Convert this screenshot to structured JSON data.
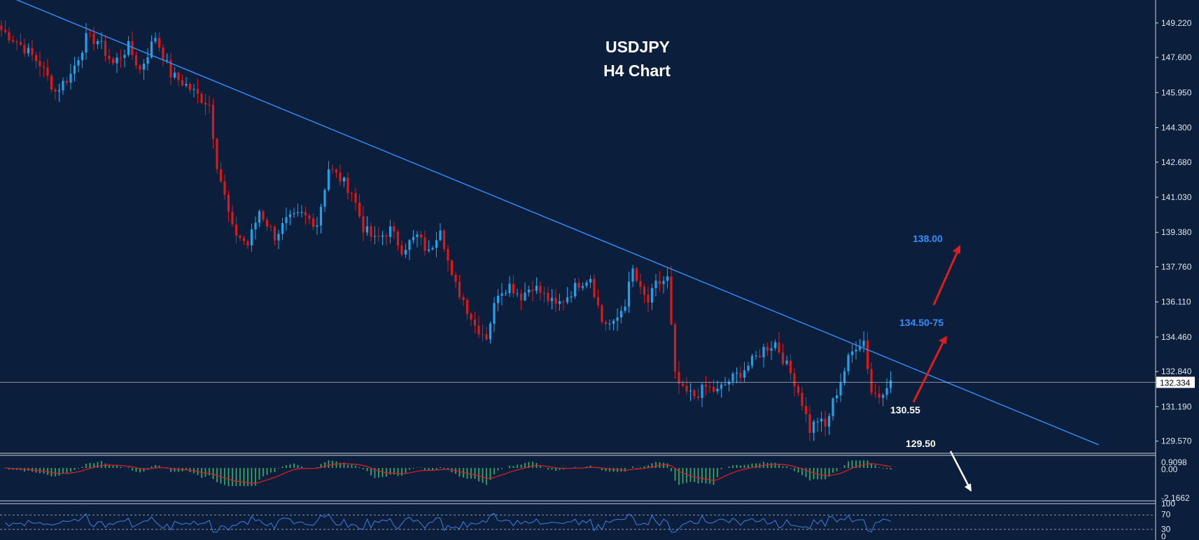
{
  "colors": {
    "background": "#0b1f3d",
    "axis_text": "#dfe6f0",
    "bull_candle": "#1fa3e8",
    "bear_candle": "#d91a1a",
    "trendline": "#2f8fff",
    "macd_hist": "#2fb86b",
    "macd_signal": "#e02020",
    "rsi_line": "#3a7fe0",
    "arrow_red": "#e01c1c",
    "arrow_white": "#ffffff",
    "price_line": "#c8d0da",
    "annotation_blue": "#2f8fff",
    "annotation_white": "#ffffff"
  },
  "chart_data": [
    {
      "type": "candlestick",
      "title": "USDJPY",
      "subtitle": "H4 Chart",
      "ylim": [
        129.0,
        150.3
      ],
      "yticks": [
        "149.220",
        "147.600",
        "145.950",
        "144.300",
        "142.680",
        "141.030",
        "139.380",
        "137.760",
        "136.110",
        "134.460",
        "132.840",
        "131.190",
        "129.570"
      ],
      "current_price": "132.334",
      "close_path": [
        [
          0,
          148.9
        ],
        [
          5,
          148.2
        ],
        [
          10,
          147.3
        ],
        [
          14,
          146.0
        ],
        [
          18,
          146.8
        ],
        [
          22,
          148.5
        ],
        [
          25,
          148.4
        ],
        [
          29,
          147.3
        ],
        [
          33,
          148.1
        ],
        [
          36,
          147.0
        ],
        [
          40,
          148.6
        ],
        [
          44,
          146.8
        ],
        [
          48,
          146.3
        ],
        [
          51,
          145.8
        ],
        [
          54,
          145.4
        ],
        [
          56,
          142.6
        ],
        [
          60,
          139.5
        ],
        [
          64,
          138.8
        ],
        [
          67,
          140.4
        ],
        [
          71,
          139.2
        ],
        [
          74,
          139.9
        ],
        [
          78,
          140.2
        ],
        [
          82,
          139.8
        ],
        [
          85,
          142.4
        ],
        [
          88,
          141.9
        ],
        [
          91,
          141.3
        ],
        [
          94,
          139.6
        ],
        [
          97,
          139.0
        ],
        [
          101,
          139.5
        ],
        [
          104,
          138.6
        ],
        [
          108,
          139.2
        ],
        [
          111,
          138.4
        ],
        [
          114,
          139.7
        ],
        [
          117,
          137.2
        ],
        [
          120,
          136.2
        ],
        [
          123,
          135.0
        ],
        [
          126,
          134.5
        ],
        [
          129,
          136.6
        ],
        [
          132,
          136.9
        ],
        [
          135,
          136.4
        ],
        [
          138,
          136.9
        ],
        [
          141,
          136.4
        ],
        [
          144,
          135.9
        ],
        [
          147,
          136.4
        ],
        [
          150,
          137.0
        ],
        [
          153,
          137.3
        ],
        [
          156,
          135.2
        ],
        [
          159,
          135.0
        ],
        [
          162,
          136.1
        ],
        [
          164,
          137.6
        ],
        [
          166,
          136.6
        ],
        [
          168,
          136.1
        ],
        [
          170,
          136.9
        ],
        [
          173,
          137.2
        ],
        [
          175,
          132.6
        ],
        [
          177,
          131.9
        ],
        [
          180,
          131.7
        ],
        [
          183,
          132.1
        ],
        [
          186,
          131.9
        ],
        [
          189,
          132.4
        ],
        [
          192,
          132.8
        ],
        [
          195,
          133.3
        ],
        [
          198,
          133.9
        ],
        [
          201,
          134.2
        ],
        [
          204,
          133.1
        ],
        [
          206,
          132.4
        ],
        [
          208,
          131.4
        ],
        [
          210,
          130.1
        ],
        [
          212,
          130.6
        ],
        [
          214,
          130.2
        ],
        [
          216,
          131.4
        ],
        [
          218,
          132.4
        ],
        [
          220,
          133.4
        ],
        [
          222,
          134.1
        ],
        [
          224,
          134.3
        ],
        [
          226,
          131.9
        ],
        [
          228,
          131.7
        ],
        [
          230,
          132.3
        ]
      ],
      "trendline": {
        "from": [
          -8,
          151.2
        ],
        "to": [
          285,
          129.4
        ]
      }
    },
    {
      "type": "histogram+line",
      "indicator": "MACD",
      "yticks": [
        "0.9098",
        "0.00",
        "-2.1662"
      ]
    },
    {
      "type": "line",
      "indicator": "RSI",
      "yticks": [
        "100",
        "70",
        "30",
        "0"
      ],
      "levels": [
        70,
        30
      ]
    }
  ],
  "annotations": {
    "target_high": "138.00",
    "target_mid": "134.50-75",
    "support_1": "130.55",
    "support_2": "129.50"
  }
}
